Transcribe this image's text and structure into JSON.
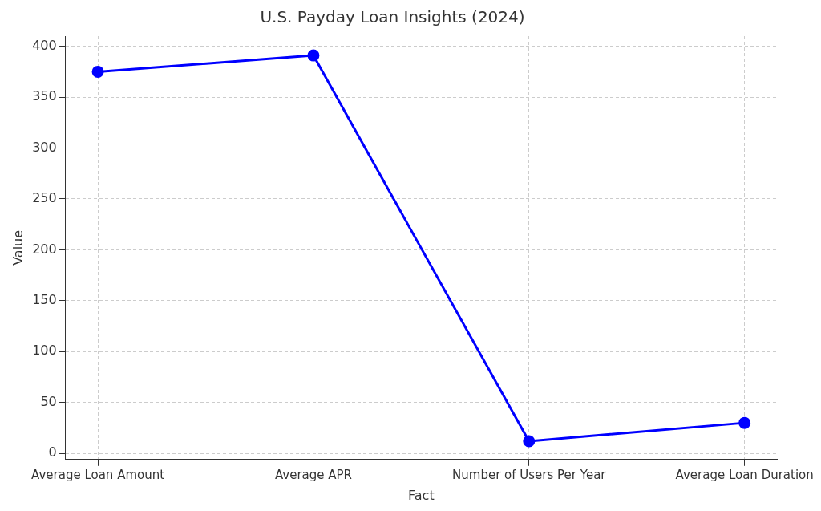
{
  "chart_data": {
    "type": "line",
    "title": "U.S. Payday Loan Insights (2024)",
    "xlabel": "Fact",
    "ylabel": "Value",
    "categories": [
      "Average Loan Amount",
      "Average APR",
      "Number of Users Per Year",
      "Average Loan Duration"
    ],
    "series": [
      {
        "color": "#0000ff",
        "values": [
          375,
          391,
          12,
          30
        ]
      }
    ],
    "ylim": [
      -6,
      410
    ],
    "yticks": [
      0,
      50,
      100,
      150,
      200,
      250,
      300,
      350,
      400
    ],
    "grid": true,
    "legend": false,
    "marker": "circle",
    "line_style": "solid"
  }
}
